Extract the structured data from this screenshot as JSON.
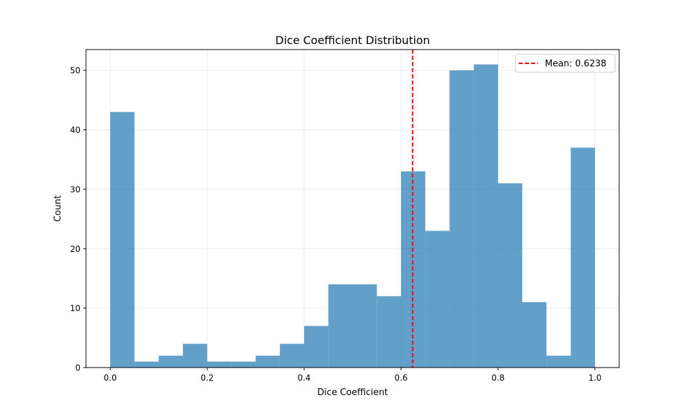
{
  "chart_data": {
    "type": "bar",
    "title": "Dice Coefficient Distribution",
    "xlabel": "Dice Coefficient",
    "ylabel": "Count",
    "xlim": [
      -0.05,
      1.05
    ],
    "ylim": [
      0,
      53.5
    ],
    "bin_edges": [
      0.0,
      0.05,
      0.1,
      0.15,
      0.2,
      0.25,
      0.3,
      0.35,
      0.4,
      0.45,
      0.5,
      0.55,
      0.6,
      0.65,
      0.7,
      0.75,
      0.8,
      0.85,
      0.9,
      0.95,
      1.0
    ],
    "series": [
      {
        "values": [
          43,
          1,
          2,
          4,
          1,
          1,
          2,
          4,
          7,
          14,
          14,
          12,
          33,
          23,
          50,
          51,
          31,
          11,
          2,
          37
        ],
        "color": "#1f77b4",
        "alpha": 0.7
      }
    ],
    "mean_line": {
      "x": 0.6238,
      "label": "Mean: 0.6238",
      "color": "#ff0000",
      "style": "dashed"
    },
    "x_ticks": [
      {
        "value": 0.0,
        "label": "0.0"
      },
      {
        "value": 0.2,
        "label": "0.2"
      },
      {
        "value": 0.4,
        "label": "0.4"
      },
      {
        "value": 0.6,
        "label": "0.6"
      },
      {
        "value": 0.8,
        "label": "0.8"
      },
      {
        "value": 1.0,
        "label": "1.0"
      }
    ],
    "y_ticks": [
      {
        "value": 0,
        "label": "0"
      },
      {
        "value": 10,
        "label": "10"
      },
      {
        "value": 20,
        "label": "20"
      },
      {
        "value": 30,
        "label": "30"
      },
      {
        "value": 40,
        "label": "40"
      },
      {
        "value": 50,
        "label": "50"
      }
    ],
    "grid": true,
    "legend_position": "top-right"
  }
}
